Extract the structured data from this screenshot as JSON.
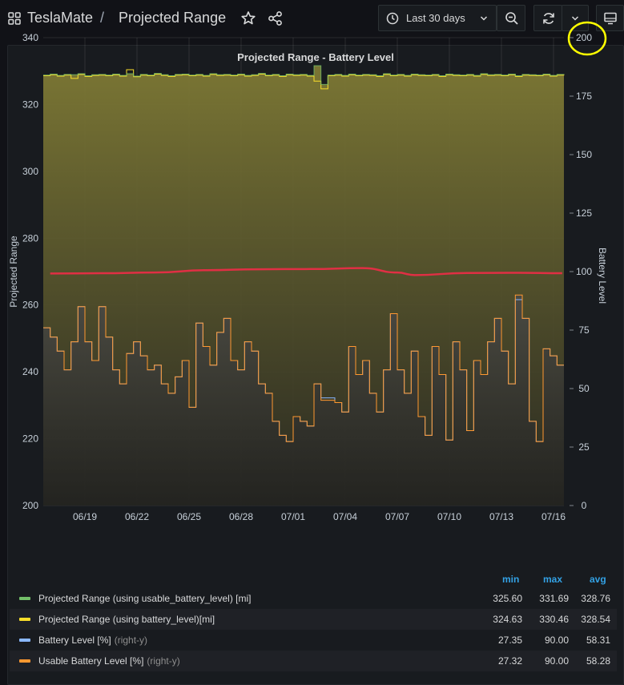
{
  "header": {
    "app_name": "TeslaMate",
    "separator": "/",
    "dashboard_title": "Projected Range",
    "time_range_label": "Last 30 days"
  },
  "icons": {
    "apps": "apps-grid-icon",
    "star": "star-icon",
    "share": "share-icon",
    "clock": "clock-icon",
    "caret": "chevron-down-icon",
    "zoom_out": "zoom-out-icon",
    "refresh": "refresh-icon",
    "monitor": "monitor-icon"
  },
  "panel": {
    "title": "Projected Range - Battery Level"
  },
  "chart_data": {
    "type": "line",
    "title": "Projected Range - Battery Level",
    "ylabel": "Projected Range",
    "y2label": "Battery Level",
    "ylim": [
      200,
      340
    ],
    "y2lim": [
      0,
      200
    ],
    "yticks": [
      200,
      220,
      240,
      260,
      280,
      300,
      320,
      340
    ],
    "y2ticks": [
      0,
      25,
      50,
      75,
      100,
      125,
      150,
      175,
      200
    ],
    "xticks": [
      "06/19",
      "06/22",
      "06/25",
      "06/28",
      "07/01",
      "07/04",
      "07/07",
      "07/10",
      "07/13",
      "07/16"
    ],
    "x_start_day": 16.6,
    "x_end_day": 46.6,
    "grid": true,
    "colors": {
      "range_usable": "#73bf69",
      "range_battery": "#fade2a",
      "battery_level": "#8ab8ff",
      "usable_battery_level": "#ff9830",
      "avg_line": "#e02f44",
      "highlight": "#ffff00"
    },
    "series": [
      {
        "name": "Projected Range (using usable_battery_level) [mi]",
        "axis": "left",
        "x": [
          16.6,
          17.0,
          17.4,
          17.8,
          18.2,
          18.6,
          19.0,
          19.4,
          19.8,
          20.2,
          20.6,
          21.0,
          21.4,
          21.8,
          22.2,
          22.6,
          23.0,
          23.4,
          23.8,
          24.2,
          24.6,
          25.0,
          25.4,
          25.8,
          26.2,
          26.6,
          27.0,
          27.4,
          27.8,
          28.2,
          28.6,
          29.0,
          29.4,
          29.8,
          30.2,
          30.6,
          31.0,
          31.4,
          31.8,
          32.2,
          32.6,
          33.0,
          33.4,
          33.8,
          34.2,
          34.6,
          35.0,
          35.4,
          35.8,
          36.2,
          36.6,
          37.0,
          37.4,
          37.8,
          38.2,
          38.6,
          39.0,
          39.4,
          39.8,
          40.2,
          40.6,
          41.0,
          41.4,
          41.8,
          42.2,
          42.6,
          43.0,
          43.4,
          43.8,
          44.2,
          44.6,
          45.0,
          45.4,
          45.8,
          46.2,
          46.6
        ],
        "values": [
          328.8,
          329.1,
          328.7,
          329.0,
          328.9,
          329.2,
          328.6,
          328.9,
          329.0,
          328.8,
          329.1,
          328.7,
          329.2,
          328.5,
          329.0,
          328.8,
          329.3,
          328.9,
          328.6,
          329.0,
          329.1,
          328.8,
          329.0,
          328.7,
          329.2,
          328.9,
          329.0,
          328.8,
          329.1,
          328.7,
          328.9,
          329.3,
          328.8,
          329.0,
          328.6,
          329.1,
          328.9,
          329.0,
          328.7,
          331.6,
          326.0,
          328.8,
          329.0,
          328.7,
          329.1,
          328.8,
          329.0,
          328.9,
          328.6,
          329.2,
          328.8,
          329.0,
          328.7,
          329.1,
          328.9,
          328.8,
          329.0,
          328.6,
          329.1,
          328.9,
          328.8,
          329.0,
          328.7,
          329.2,
          328.9,
          329.0,
          328.8,
          329.1,
          328.6,
          329.0,
          328.9,
          328.8,
          329.1,
          328.7,
          329.0,
          328.9
        ]
      },
      {
        "name": "Projected Range (using battery_level)[mi]",
        "axis": "left",
        "x": [
          16.6,
          17.0,
          17.4,
          17.8,
          18.2,
          18.6,
          19.0,
          19.4,
          19.8,
          20.2,
          20.6,
          21.0,
          21.4,
          21.8,
          22.2,
          22.6,
          23.0,
          23.4,
          23.8,
          24.2,
          24.6,
          25.0,
          25.4,
          25.8,
          26.2,
          26.6,
          27.0,
          27.4,
          27.8,
          28.2,
          28.6,
          29.0,
          29.4,
          29.8,
          30.2,
          30.6,
          31.0,
          31.4,
          31.8,
          32.2,
          32.6,
          33.0,
          33.4,
          33.8,
          34.2,
          34.6,
          35.0,
          35.4,
          35.8,
          36.2,
          36.6,
          37.0,
          37.4,
          37.8,
          38.2,
          38.6,
          39.0,
          39.4,
          39.8,
          40.2,
          40.6,
          41.0,
          41.4,
          41.8,
          42.2,
          42.6,
          43.0,
          43.4,
          43.8,
          44.2,
          44.6,
          45.0,
          45.4,
          45.8,
          46.2,
          46.6
        ],
        "values": [
          328.6,
          328.9,
          328.5,
          328.8,
          327.8,
          329.0,
          328.4,
          328.7,
          328.8,
          328.6,
          328.9,
          328.5,
          330.4,
          328.3,
          328.8,
          328.6,
          329.1,
          328.7,
          328.4,
          328.8,
          328.9,
          328.6,
          328.8,
          328.5,
          329.0,
          328.7,
          328.8,
          328.6,
          328.9,
          328.5,
          328.7,
          329.1,
          328.6,
          328.8,
          328.4,
          328.9,
          328.7,
          328.8,
          328.5,
          327.0,
          324.7,
          328.6,
          328.8,
          328.5,
          328.9,
          328.6,
          328.8,
          328.7,
          328.4,
          329.0,
          328.6,
          328.8,
          328.5,
          328.9,
          328.7,
          328.6,
          328.8,
          328.4,
          328.9,
          328.7,
          328.6,
          328.8,
          328.5,
          329.0,
          328.7,
          328.8,
          328.6,
          328.9,
          328.4,
          328.8,
          328.7,
          328.6,
          328.9,
          328.5,
          328.8,
          328.7
        ]
      },
      {
        "name": "Battery Level [%]",
        "axis": "right",
        "axis_note": "(right-y)",
        "x": [
          16.6,
          17.0,
          17.4,
          17.8,
          18.2,
          18.6,
          19.0,
          19.4,
          19.8,
          20.2,
          20.6,
          21.0,
          21.4,
          21.8,
          22.2,
          22.6,
          23.0,
          23.4,
          23.8,
          24.2,
          24.6,
          25.0,
          25.4,
          25.8,
          26.2,
          26.6,
          27.0,
          27.4,
          27.8,
          28.2,
          28.6,
          29.0,
          29.4,
          29.8,
          30.2,
          30.6,
          31.0,
          31.4,
          31.8,
          32.2,
          32.6,
          33.0,
          33.4,
          33.8,
          34.2,
          34.6,
          35.0,
          35.4,
          35.8,
          36.2,
          36.6,
          37.0,
          37.4,
          37.8,
          38.2,
          38.6,
          39.0,
          39.4,
          39.8,
          40.2,
          40.6,
          41.0,
          41.4,
          41.8,
          42.2,
          42.6,
          43.0,
          43.4,
          43.8,
          44.2,
          44.6,
          45.0,
          45.4,
          45.8,
          46.2,
          46.6
        ],
        "values": [
          76,
          72,
          66,
          58,
          70,
          85,
          70,
          62,
          85,
          72,
          58,
          52,
          65,
          70,
          64,
          58,
          60,
          52,
          48,
          55,
          62,
          42,
          78,
          68,
          60,
          74,
          80,
          62,
          58,
          70,
          66,
          52,
          48,
          36,
          30,
          27.4,
          38,
          36,
          34,
          52,
          46,
          46,
          44,
          40,
          68,
          56,
          62,
          48,
          40,
          58,
          82,
          58,
          48,
          66,
          38,
          30,
          68,
          56,
          28,
          70,
          58,
          32,
          62,
          56,
          70,
          80,
          66,
          52,
          88,
          80,
          36,
          27.4,
          67,
          64,
          60,
          60
        ]
      },
      {
        "name": "Usable Battery Level [%]",
        "axis": "right",
        "axis_note": "(right-y)",
        "x": [
          16.6,
          17.0,
          17.4,
          17.8,
          18.2,
          18.6,
          19.0,
          19.4,
          19.8,
          20.2,
          20.6,
          21.0,
          21.4,
          21.8,
          22.2,
          22.6,
          23.0,
          23.4,
          23.8,
          24.2,
          24.6,
          25.0,
          25.4,
          25.8,
          26.2,
          26.6,
          27.0,
          27.4,
          27.8,
          28.2,
          28.6,
          29.0,
          29.4,
          29.8,
          30.2,
          30.6,
          31.0,
          31.4,
          31.8,
          32.2,
          32.6,
          33.0,
          33.4,
          33.8,
          34.2,
          34.6,
          35.0,
          35.4,
          35.8,
          36.2,
          36.6,
          37.0,
          37.4,
          37.8,
          38.2,
          38.6,
          39.0,
          39.4,
          39.8,
          40.2,
          40.6,
          41.0,
          41.4,
          41.8,
          42.2,
          42.6,
          43.0,
          43.4,
          43.8,
          44.2,
          44.6,
          45.0,
          45.4,
          45.8,
          46.2,
          46.6
        ],
        "values": [
          76,
          72,
          66,
          58,
          70,
          85,
          70,
          62,
          85,
          72,
          58,
          52,
          65,
          70,
          64,
          58,
          60,
          52,
          48,
          55,
          62,
          42,
          78,
          68,
          60,
          74,
          80,
          62,
          58,
          70,
          66,
          52,
          48,
          36,
          30,
          27.3,
          38,
          36,
          34,
          52,
          45,
          45,
          44,
          40,
          68,
          56,
          62,
          48,
          40,
          58,
          82,
          58,
          48,
          66,
          38,
          30,
          68,
          56,
          28,
          70,
          58,
          32,
          62,
          56,
          70,
          80,
          66,
          52,
          90,
          80,
          36,
          27.3,
          67,
          64,
          60,
          60
        ]
      },
      {
        "name": "",
        "axis": "right",
        "x": [
          17.0,
          20.0,
          23.0,
          26.0,
          29.0,
          32.0,
          35.0,
          37.0,
          38.0,
          41.0,
          44.0,
          46.5
        ],
        "values": [
          99.2,
          99.3,
          99.6,
          100.6,
          101.0,
          101.1,
          101.5,
          99.6,
          98.5,
          99.4,
          99.5,
          99.3
        ]
      }
    ],
    "legend": {
      "placement": "bottom",
      "columns": [
        "min",
        "max",
        "avg"
      ],
      "rows": [
        {
          "name": "Projected Range (using usable_battery_level) [mi]",
          "axis_note": "",
          "min": "325.60",
          "max": "331.69",
          "avg": "328.76"
        },
        {
          "name": "Projected Range (using battery_level)[mi]",
          "axis_note": "",
          "min": "324.63",
          "max": "330.46",
          "avg": "328.54"
        },
        {
          "name": "Battery Level [%]",
          "axis_note": "(right-y)",
          "min": "27.35",
          "max": "90.00",
          "avg": "58.31"
        },
        {
          "name": "Usable Battery Level [%]",
          "axis_note": "(right-y)",
          "min": "27.32",
          "max": "90.00",
          "avg": "58.28"
        }
      ]
    }
  }
}
